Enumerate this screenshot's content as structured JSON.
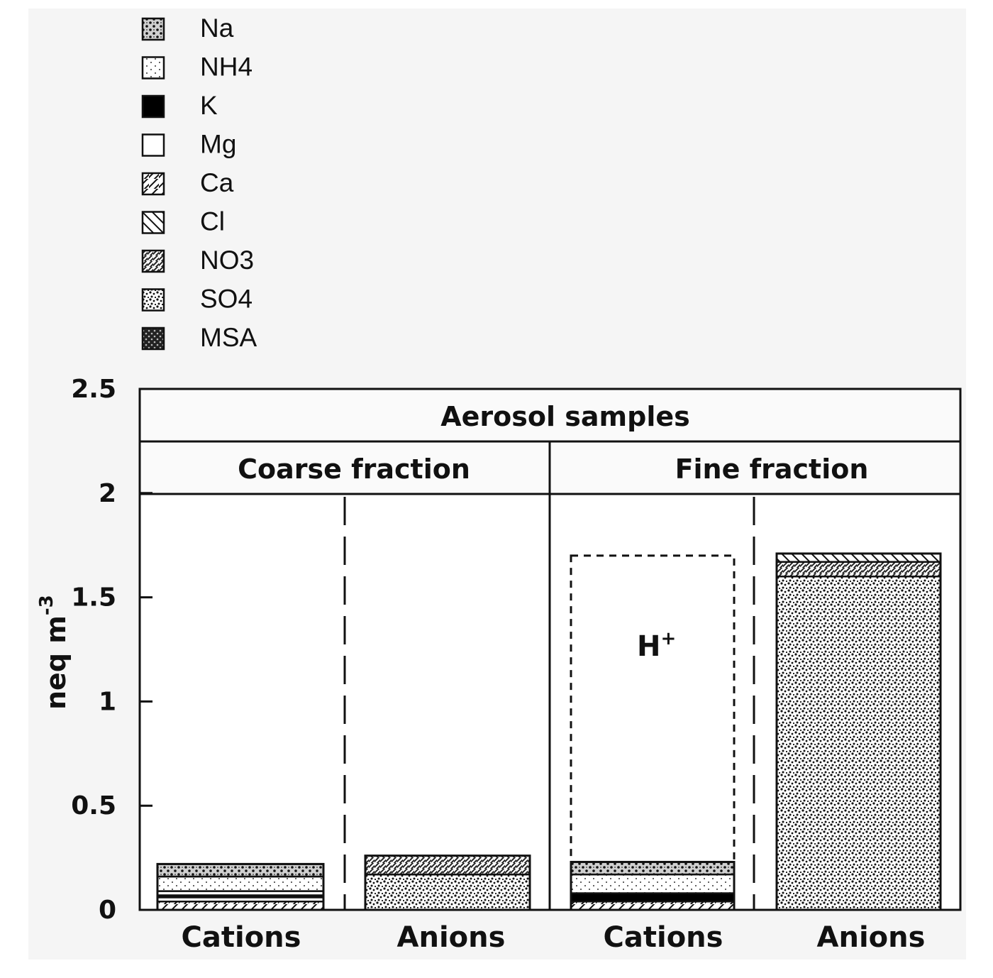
{
  "chart_data": {
    "type": "bar",
    "stacked": true,
    "title": "Aerosol samples",
    "ylabel": "neq m",
    "ylabel_superscript": "-3",
    "ylim": [
      0,
      2.5
    ],
    "yticks": [
      "0",
      "0.5",
      "1",
      "1.5",
      "2",
      "2.5"
    ],
    "yticks_values": [
      0,
      0.5,
      1,
      1.5,
      2,
      2.5
    ],
    "legend_position": "top-left",
    "legend": [
      {
        "key": "Na",
        "label": "Na",
        "pattern": "pat-na"
      },
      {
        "key": "NH4",
        "label": "NH4",
        "pattern": "pat-nh4"
      },
      {
        "key": "K",
        "label": "K",
        "pattern": "pat-k"
      },
      {
        "key": "Mg",
        "label": "Mg",
        "pattern": "pat-mg"
      },
      {
        "key": "Ca",
        "label": "Ca",
        "pattern": "pat-ca"
      },
      {
        "key": "Cl",
        "label": "Cl",
        "pattern": "pat-cl"
      },
      {
        "key": "NO3",
        "label": "NO3",
        "pattern": "pat-no3"
      },
      {
        "key": "SO4",
        "label": "SO4",
        "pattern": "pat-so4"
      },
      {
        "key": "MSA",
        "label": "MSA",
        "pattern": "pat-msa"
      }
    ],
    "groups": [
      {
        "label": "Coarse fraction",
        "bars": [
          {
            "label": "Cations",
            "segments": [
              {
                "ion": "Ca",
                "value": 0.04
              },
              {
                "ion": "Mg",
                "value": 0.02
              },
              {
                "ion": "K",
                "value": 0.01
              },
              {
                "ion": "Mg",
                "value": 0.02
              },
              {
                "ion": "NH4",
                "value": 0.07
              },
              {
                "ion": "Na",
                "value": 0.06
              }
            ]
          },
          {
            "label": "Anions",
            "segments": [
              {
                "ion": "SO4",
                "value": 0.17
              },
              {
                "ion": "NO3",
                "value": 0.09
              }
            ]
          }
        ]
      },
      {
        "label": "Fine fraction",
        "bars": [
          {
            "label": "Cations",
            "segments": [
              {
                "ion": "Ca",
                "value": 0.04
              },
              {
                "ion": "K",
                "value": 0.04
              },
              {
                "ion": "NH4",
                "value": 0.09
              },
              {
                "ion": "Na",
                "value": 0.06
              }
            ],
            "h_plus": {
              "label": "H",
              "sup": "+",
              "top": 1.7
            }
          },
          {
            "label": "Anions",
            "segments": [
              {
                "ion": "SO4",
                "value": 1.6
              },
              {
                "ion": "NO3",
                "value": 0.07
              },
              {
                "ion": "Cl",
                "value": 0.04
              }
            ]
          }
        ]
      }
    ]
  }
}
